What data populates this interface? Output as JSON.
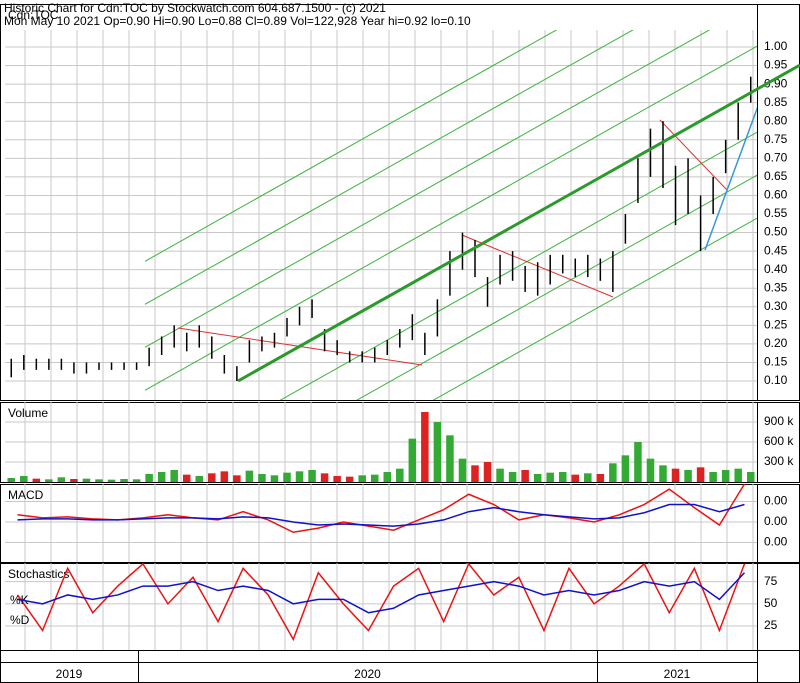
{
  "header": {
    "line1": "Historic Chart for Cdn:TOC by Stockwatch.com 604.687.1500 - (c) 2021",
    "line2": "Mon May 10 2021   Op=0.90   Hi=0.90   Lo=0.88   Cl=0.89   Vol=122,928   Year hi=0.92   lo=0.10"
  },
  "years": [
    "2019",
    "2020",
    "2021"
  ],
  "chart_data": [
    {
      "type": "hlc",
      "label": "Cdn:TOC",
      "color": "#000000",
      "grid": true,
      "high": [
        0.16,
        0.17,
        0.16,
        0.16,
        0.16,
        0.15,
        0.15,
        0.15,
        0.15,
        0.15,
        0.15,
        0.19,
        0.22,
        0.25,
        0.23,
        0.25,
        0.22,
        0.17,
        0.14,
        0.21,
        0.22,
        0.23,
        0.27,
        0.3,
        0.32,
        0.24,
        0.21,
        0.18,
        0.18,
        0.19,
        0.21,
        0.24,
        0.28,
        0.23,
        0.32,
        0.45,
        0.5,
        0.48,
        0.38,
        0.44,
        0.45,
        0.41,
        0.42,
        0.44,
        0.44,
        0.43,
        0.44,
        0.43,
        0.45,
        0.55,
        0.7,
        0.78,
        0.8,
        0.68,
        0.7,
        0.6,
        0.65,
        0.75,
        0.85,
        0.92
      ],
      "low": [
        0.11,
        0.13,
        0.13,
        0.13,
        0.13,
        0.12,
        0.12,
        0.13,
        0.13,
        0.13,
        0.13,
        0.14,
        0.17,
        0.19,
        0.18,
        0.19,
        0.16,
        0.12,
        0.1,
        0.15,
        0.18,
        0.19,
        0.22,
        0.25,
        0.27,
        0.18,
        0.17,
        0.15,
        0.15,
        0.15,
        0.17,
        0.19,
        0.21,
        0.17,
        0.22,
        0.33,
        0.4,
        0.38,
        0.3,
        0.36,
        0.37,
        0.34,
        0.33,
        0.36,
        0.39,
        0.38,
        0.38,
        0.37,
        0.34,
        0.47,
        0.58,
        0.65,
        0.62,
        0.52,
        0.55,
        0.45,
        0.55,
        0.66,
        0.75,
        0.85
      ],
      "ylim": [
        0.0488,
        1.0458
      ],
      "yticks": [
        {
          "value": 0.1,
          "label": "0.10"
        },
        {
          "value": 0.15,
          "label": "0.15"
        },
        {
          "value": 0.2,
          "label": "0.20"
        },
        {
          "value": 0.25,
          "label": "0.25"
        },
        {
          "value": 0.3,
          "label": "0.30"
        },
        {
          "value": 0.35,
          "label": "0.35"
        },
        {
          "value": 0.4,
          "label": "0.40"
        },
        {
          "value": 0.45,
          "label": "0.45"
        },
        {
          "value": 0.5,
          "label": "0.50"
        },
        {
          "value": 0.55,
          "label": "0.55"
        },
        {
          "value": 0.6,
          "label": "0.60"
        },
        {
          "value": 0.65,
          "label": "0.65"
        },
        {
          "value": 0.7,
          "label": "0.70"
        },
        {
          "value": 0.75,
          "label": "0.75"
        },
        {
          "value": 0.8,
          "label": "0.80"
        },
        {
          "value": 0.85,
          "label": "0.85"
        },
        {
          "value": 0.9,
          "label": "0.90"
        },
        {
          "value": 0.95,
          "label": "0.95"
        },
        {
          "value": 1.0,
          "label": "1.00"
        }
      ]
    },
    {
      "type": "bar",
      "label": "Volume",
      "up_color": "#33aa33",
      "down_color": "#dd2222",
      "grid": true,
      "values": [
        60000,
        90000,
        50000,
        40000,
        70000,
        45000,
        50000,
        40000,
        35000,
        45000,
        40000,
        120000,
        150000,
        180000,
        110000,
        90000,
        130000,
        160000,
        100000,
        170000,
        120000,
        100000,
        140000,
        160000,
        180000,
        130000,
        90000,
        80000,
        100000,
        110000,
        150000,
        200000,
        650000,
        1050000,
        900000,
        700000,
        350000,
        250000,
        300000,
        200000,
        150000,
        180000,
        120000,
        140000,
        150000,
        110000,
        130000,
        120000,
        280000,
        400000,
        600000,
        350000,
        250000,
        200000,
        180000,
        220000,
        150000,
        180000,
        200000,
        150000
      ],
      "ylim": [
        0,
        1200000
      ],
      "yticks": [
        {
          "value": 300000,
          "label": "300 k"
        },
        {
          "value": 600000,
          "label": "600 k"
        },
        {
          "value": 900000,
          "label": "900 k"
        }
      ]
    },
    {
      "type": "line",
      "label": "MACD",
      "grid": true,
      "series": [
        {
          "color": "#ee1111",
          "values": [
            0.0014,
            0.0008,
            0.001,
            0.0006,
            0.0004,
            0.0008,
            0.0014,
            0.0008,
            0.0004,
            0.002,
            0.0004,
            -0.002,
            -0.0012,
            0,
            -0.0008,
            -0.0016,
            0.0004,
            0.0024,
            0.0054,
            0.0034,
            0.0004,
            0.0014,
            0.0008,
            0,
            0.0014,
            0.0034,
            0.0064,
            0.0028,
            -0.0006,
            0.0074
          ]
        },
        {
          "color": "#1111cc",
          "values": [
            0.0004,
            0.0006,
            0.0006,
            0.0004,
            0.0004,
            0.0006,
            0.0008,
            0.0008,
            0.0006,
            0.001,
            0.0008,
            0,
            -0.0006,
            -0.0004,
            -0.0006,
            -0.0008,
            -0.0004,
            0.0004,
            0.002,
            0.0028,
            0.002,
            0.0014,
            0.001,
            0.0006,
            0.0008,
            0.0018,
            0.0034,
            0.0034,
            0.002,
            0.0034
          ]
        }
      ],
      "ylim": [
        -0.0078,
        0.0074
      ],
      "yticks": [
        {
          "value": 0.004,
          "label": "0.00"
        },
        {
          "value": 0,
          "label": "0.00"
        },
        {
          "value": -0.004,
          "label": "0.00"
        }
      ]
    },
    {
      "type": "line",
      "label": "Stochastics",
      "grid": true,
      "series": [
        {
          "name": "%K",
          "color": "#ee1111",
          "values": [
            60,
            20,
            90,
            40,
            70,
            95,
            50,
            80,
            30,
            90,
            60,
            10,
            85,
            50,
            20,
            70,
            90,
            30,
            95,
            60,
            80,
            20,
            90,
            50,
            70,
            95,
            40,
            90,
            20,
            95
          ]
        },
        {
          "name": "%D",
          "color": "#1111cc",
          "values": [
            55,
            50,
            60,
            55,
            60,
            70,
            70,
            75,
            65,
            70,
            65,
            50,
            55,
            55,
            40,
            45,
            60,
            65,
            70,
            75,
            70,
            60,
            65,
            60,
            65,
            75,
            70,
            75,
            55,
            85
          ]
        }
      ],
      "ylim": [
        -2,
        96
      ],
      "yticks": [
        25,
        50,
        75
      ]
    }
  ]
}
